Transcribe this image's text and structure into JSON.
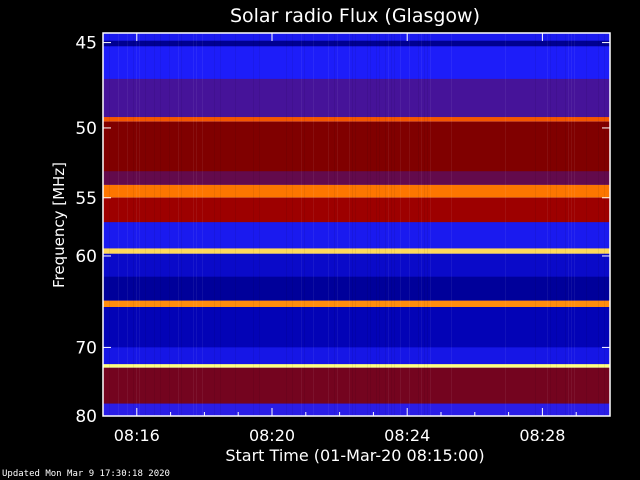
{
  "title": "Solar radio Flux (Glasgow)",
  "updated": "Updated Mon Mar  9 17:30:18 2020",
  "chart_data": {
    "type": "heatmap",
    "title": "Solar radio Flux (Glasgow)",
    "xlabel": "Start Time (01-Mar-20 08:15:00)",
    "ylabel": "Frequency [MHz]",
    "x_ticks": [
      "08:16",
      "08:20",
      "08:24",
      "08:28"
    ],
    "x_tick_minutes": [
      16,
      20,
      24,
      28
    ],
    "x_range_minutes": [
      15,
      30
    ],
    "y_ticks": [
      45,
      50,
      55,
      60,
      70,
      80
    ],
    "y_scale": "reciprocal",
    "y_range": [
      44.5,
      80
    ],
    "colormap": [
      "#000060",
      "#0000b0",
      "#2020ff",
      "#800000",
      "#e00000",
      "#ff8000",
      "#ffff80"
    ],
    "bands": [
      {
        "freq_from": 44.9,
        "freq_to": 45.2,
        "level": 0.1
      },
      {
        "freq_from": 45.2,
        "freq_to": 47.0,
        "level": 0.32
      },
      {
        "freq_from": 47.0,
        "freq_to": 49.3,
        "level": 0.4
      },
      {
        "freq_from": 49.3,
        "freq_to": 49.6,
        "level": 0.78
      },
      {
        "freq_from": 49.6,
        "freq_to": 53.0,
        "level": 0.5
      },
      {
        "freq_from": 53.0,
        "freq_to": 54.0,
        "level": 0.45
      },
      {
        "freq_from": 54.0,
        "freq_to": 55.0,
        "level": 0.82
      },
      {
        "freq_from": 55.0,
        "freq_to": 57.0,
        "level": 0.55
      },
      {
        "freq_from": 57.0,
        "freq_to": 59.3,
        "level": 0.3
      },
      {
        "freq_from": 59.3,
        "freq_to": 59.8,
        "level": 0.95
      },
      {
        "freq_from": 59.8,
        "freq_to": 62.0,
        "level": 0.22
      },
      {
        "freq_from": 62.0,
        "freq_to": 64.5,
        "level": 0.12
      },
      {
        "freq_from": 64.5,
        "freq_to": 65.2,
        "level": 0.85
      },
      {
        "freq_from": 65.2,
        "freq_to": 70.0,
        "level": 0.18
      },
      {
        "freq_from": 70.0,
        "freq_to": 72.2,
        "level": 0.28
      },
      {
        "freq_from": 72.2,
        "freq_to": 72.7,
        "level": 1.0
      },
      {
        "freq_from": 72.7,
        "freq_to": 78.0,
        "level": 0.48
      },
      {
        "freq_from": 78.0,
        "freq_to": 80.0,
        "level": 0.35
      }
    ],
    "grid": false
  }
}
